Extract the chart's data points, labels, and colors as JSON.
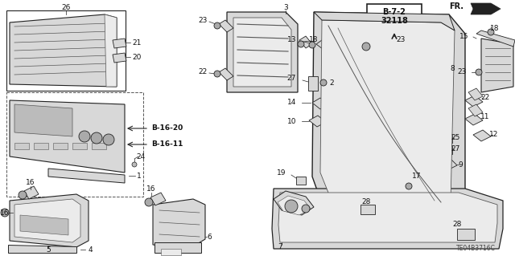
{
  "bg_color": "#ffffff",
  "part_code": "TE04B3716C",
  "ref_box_text1": "B-7-2",
  "ref_box_text2": "32118",
  "fig_w": 6.4,
  "fig_h": 3.19,
  "dpi": 100
}
